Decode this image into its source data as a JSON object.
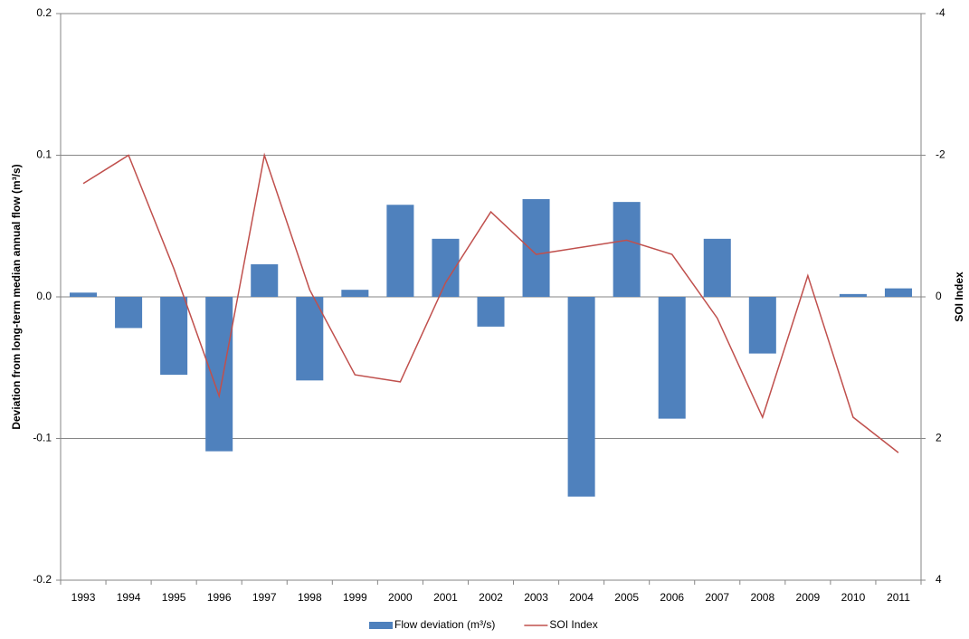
{
  "chart_data": {
    "type": "bar-line",
    "y_label": "Deviation from long-term median annual flow (m³/s)",
    "y2_label": "SOI Index",
    "categories": [
      "1993",
      "1994",
      "1995",
      "1996",
      "1997",
      "1998",
      "1999",
      "2000",
      "2001",
      "2002",
      "2003",
      "2004",
      "2005",
      "2006",
      "2007",
      "2008",
      "2009",
      "2010",
      "2011"
    ],
    "series": [
      {
        "name": "Flow deviation (m³/s)",
        "color": "#4f81bd",
        "kind": "bar",
        "values": [
          0.003,
          -0.022,
          -0.055,
          -0.109,
          0.023,
          -0.059,
          0.005,
          0.065,
          0.041,
          -0.021,
          0.069,
          -0.141,
          0.067,
          -0.086,
          0.041,
          -0.04,
          0,
          0.002,
          0.006
        ]
      },
      {
        "name": "SOI Index",
        "color": "#c0504d",
        "kind": "line",
        "axis": "y2",
        "values": [
          -1.6,
          -2.0,
          -0.4,
          1.4,
          -2.0,
          -0.1,
          1.1,
          1.2,
          -0.2,
          -1.2,
          -0.6,
          -0.7,
          -0.8,
          -0.6,
          0.3,
          1.7,
          -0.3,
          1.7,
          2.2
        ]
      }
    ],
    "ylim": [
      -0.2,
      0.2
    ],
    "yticks": [
      -0.2,
      -0.1,
      {
        "value": 0,
        "label": "0.0"
      },
      0.1,
      0.2
    ],
    "y2lim": [
      4,
      -4
    ],
    "y2ticks": [
      4,
      2,
      0,
      -2,
      -4
    ],
    "grid": true,
    "legend": "bottom"
  }
}
